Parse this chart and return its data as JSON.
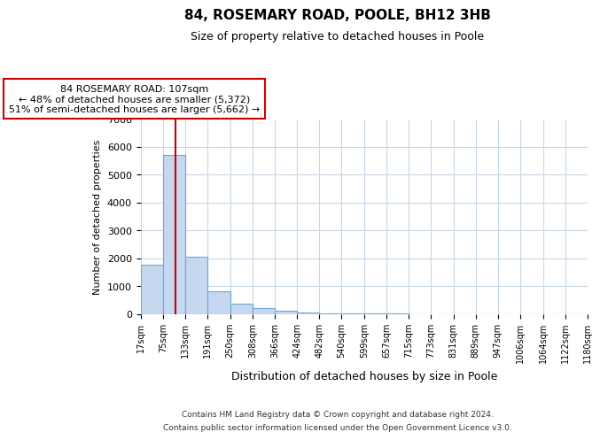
{
  "title": "84, ROSEMARY ROAD, POOLE, BH12 3HB",
  "subtitle": "Size of property relative to detached houses in Poole",
  "xlabel": "Distribution of detached houses by size in Poole",
  "ylabel": "Number of detached properties",
  "footer_lines": [
    "Contains HM Land Registry data © Crown copyright and database right 2024.",
    "Contains public sector information licensed under the Open Government Licence v3.0."
  ],
  "bin_edges": [
    17,
    75,
    133,
    191,
    250,
    308,
    366,
    424,
    482,
    540,
    599,
    657,
    715,
    773,
    831,
    889,
    947,
    1006,
    1064,
    1122,
    1180
  ],
  "bin_labels": [
    "17sqm",
    "75sqm",
    "133sqm",
    "191sqm",
    "250sqm",
    "308sqm",
    "366sqm",
    "424sqm",
    "482sqm",
    "540sqm",
    "599sqm",
    "657sqm",
    "715sqm",
    "773sqm",
    "831sqm",
    "889sqm",
    "947sqm",
    "1006sqm",
    "1064sqm",
    "1122sqm",
    "1180sqm"
  ],
  "bar_heights": [
    1780,
    5720,
    2040,
    820,
    360,
    220,
    100,
    50,
    20,
    10,
    5,
    2,
    0,
    0,
    0,
    0,
    0,
    0,
    0,
    0
  ],
  "bar_color": "#c5d8f0",
  "bar_edge_color": "#6aa8d8",
  "property_size": 107,
  "vline_color": "#cc0000",
  "annotation_text": "84 ROSEMARY ROAD: 107sqm\n← 48% of detached houses are smaller (5,372)\n51% of semi-detached houses are larger (5,662) →",
  "annotation_box_color": "#ffffff",
  "annotation_box_edge": "#cc0000",
  "ylim": [
    0,
    7000
  ],
  "yticks": [
    0,
    1000,
    2000,
    3000,
    4000,
    5000,
    6000,
    7000
  ],
  "bg_color": "#ffffff",
  "grid_color": "#c8d8e8"
}
